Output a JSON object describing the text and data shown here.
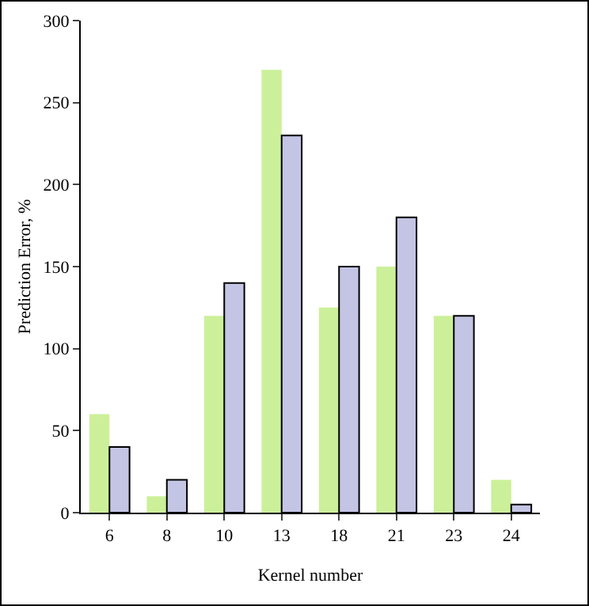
{
  "chart_data": {
    "type": "bar",
    "xlabel": "Kernel number",
    "ylabel": "Prediction Error, %",
    "categories": [
      "6",
      "8",
      "10",
      "13",
      "18",
      "21",
      "23",
      "24"
    ],
    "series": [
      {
        "color": "#ccf099",
        "values": [
          60,
          10,
          120,
          270,
          125,
          150,
          120,
          20
        ]
      },
      {
        "color": "#c4c4e4",
        "values": [
          40,
          20,
          140,
          230,
          150,
          180,
          120,
          5
        ]
      }
    ],
    "ylim": [
      0,
      300
    ],
    "yticks": [
      0,
      50,
      100,
      150,
      200,
      250,
      300
    ],
    "grid": false
  }
}
